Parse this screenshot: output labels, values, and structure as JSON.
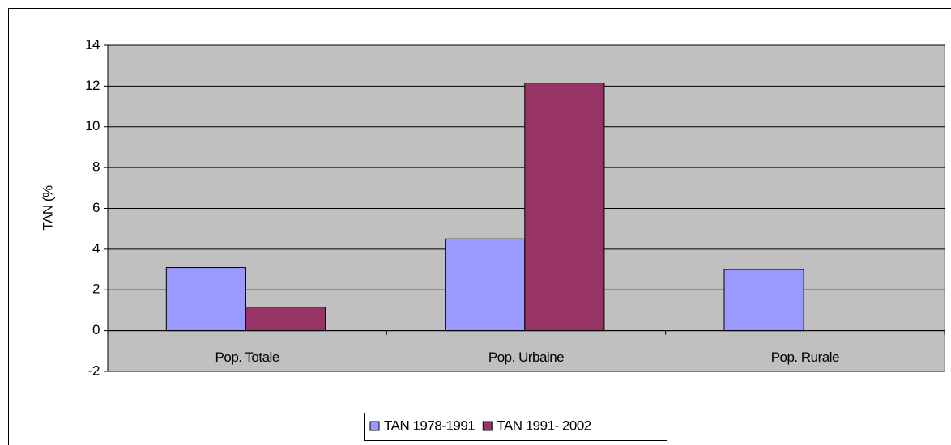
{
  "chart_data": {
    "type": "bar",
    "ylabel": "TAN (%",
    "categories": [
      "Pop. Totale",
      "Pop. Urbaine",
      "Pop. Rurale"
    ],
    "series": [
      {
        "name": "TAN 1978-1991",
        "color": "#9999ff",
        "values": [
          3.1,
          4.5,
          3.0
        ]
      },
      {
        "name": "TAN 1991- 2002",
        "color": "#993366",
        "values": [
          1.15,
          12.15,
          0
        ]
      }
    ],
    "ylim": [
      -2,
      14
    ],
    "yticks": [
      -2,
      0,
      2,
      4,
      6,
      8,
      10,
      12,
      14
    ],
    "grid": true,
    "plot_background": "#c0c0c0",
    "legend": "bottom"
  }
}
